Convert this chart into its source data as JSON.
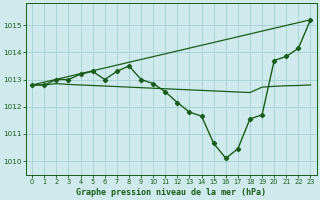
{
  "title": "Graphe pression niveau de la mer (hPa)",
  "background_color": "#ceeaec",
  "grid_color": "#a8d4d8",
  "line_color": "#1a5c1a",
  "xlim": [
    -0.5,
    23.5
  ],
  "ylim": [
    1009.5,
    1015.8
  ],
  "yticks": [
    1010,
    1011,
    1012,
    1013,
    1014,
    1015
  ],
  "xticks": [
    0,
    1,
    2,
    3,
    4,
    5,
    6,
    7,
    8,
    9,
    10,
    11,
    12,
    13,
    14,
    15,
    16,
    17,
    18,
    19,
    20,
    21,
    22,
    23
  ],
  "series1_x": [
    0,
    1,
    2,
    3,
    4,
    5,
    6,
    7,
    8,
    9,
    10,
    11,
    12,
    13,
    14,
    15,
    16,
    17,
    18,
    19,
    20,
    21,
    22,
    23
  ],
  "series1_y": [
    1012.8,
    1012.8,
    1012.85,
    1012.82,
    1012.8,
    1012.78,
    1012.76,
    1012.74,
    1012.72,
    1012.7,
    1012.68,
    1012.66,
    1012.64,
    1012.62,
    1012.6,
    1012.58,
    1012.56,
    1012.54,
    1012.52,
    1012.72,
    1012.75,
    1012.77,
    1012.78,
    1012.8
  ],
  "series2_x": [
    0,
    1,
    2,
    3,
    4,
    5,
    6,
    7,
    8,
    9,
    10,
    11,
    12,
    13,
    14,
    15,
    16,
    17,
    18,
    19,
    20,
    21,
    22,
    23
  ],
  "series2_y": [
    1012.8,
    1012.8,
    1013.0,
    1013.0,
    1013.2,
    1013.3,
    1013.0,
    1013.3,
    1013.5,
    1013.0,
    1012.85,
    1012.55,
    1012.15,
    1011.8,
    1011.65,
    1010.65,
    1010.1,
    1010.45,
    1011.55,
    1011.7,
    1013.7,
    1013.85,
    1014.15,
    1015.2
  ],
  "series3_x": [
    0,
    23
  ],
  "series3_y": [
    1012.8,
    1015.2
  ]
}
